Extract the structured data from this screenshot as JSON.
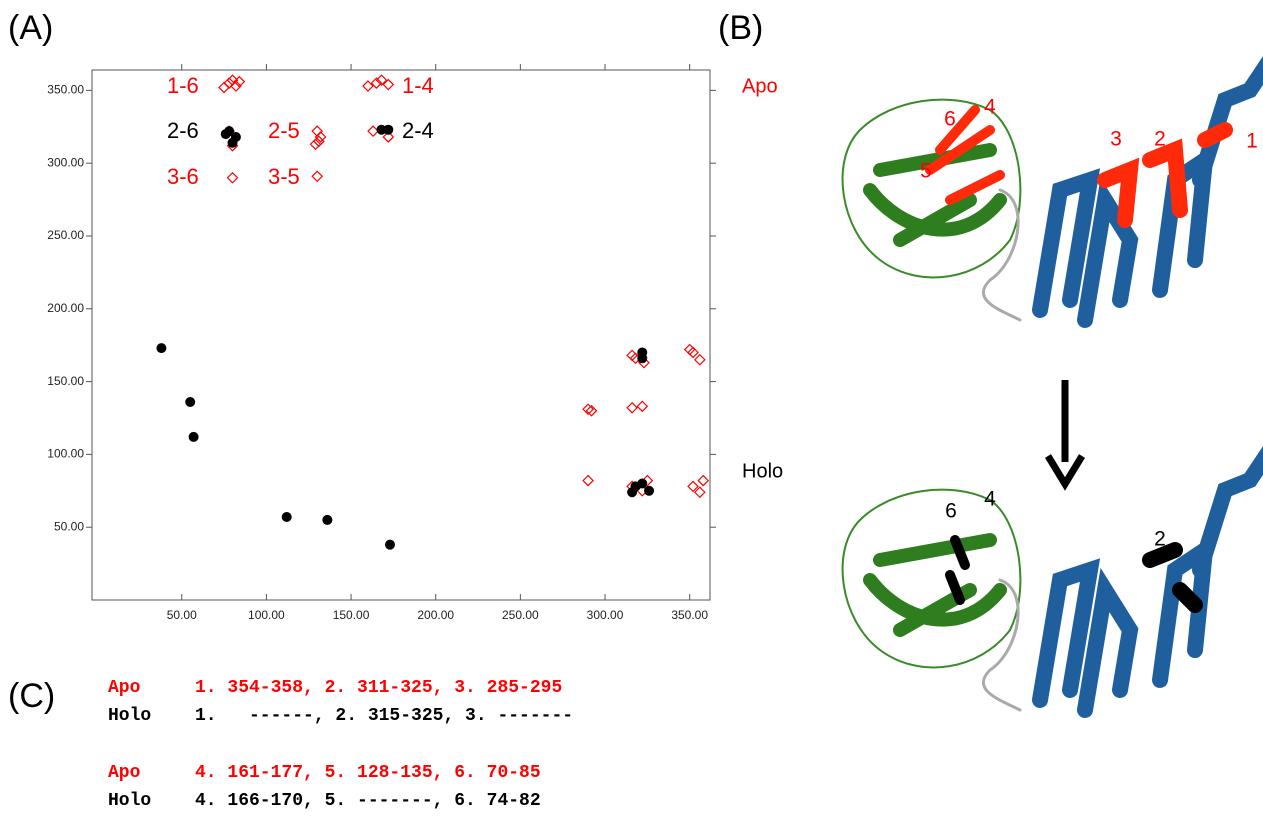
{
  "panels": {
    "a": "(A)",
    "b": "(B)",
    "c": "(C)"
  },
  "chart_data": {
    "type": "scatter",
    "xlim": [
      -3,
      362
    ],
    "ylim": [
      0,
      364
    ],
    "xticks": [
      {
        "value": 50,
        "label": "50.00"
      },
      {
        "value": 100,
        "label": "100.00"
      },
      {
        "value": 150,
        "label": "150.00"
      },
      {
        "value": 200,
        "label": "200.00"
      },
      {
        "value": 250,
        "label": "250.00"
      },
      {
        "value": 300,
        "label": "300.00"
      },
      {
        "value": 350,
        "label": "350.00"
      }
    ],
    "yticks": [
      {
        "value": 50,
        "label": "50.00"
      },
      {
        "value": 100,
        "label": "100.00"
      },
      {
        "value": 150,
        "label": "150.00"
      },
      {
        "value": 200,
        "label": "200.00"
      },
      {
        "value": 250,
        "label": "250.00"
      },
      {
        "value": 300,
        "label": "300.00"
      },
      {
        "value": 350,
        "label": "350.00"
      }
    ],
    "grid": false,
    "series": [
      {
        "name": "Apo",
        "color": "#ff0000",
        "marker": "diamond-open",
        "x": [
          75,
          78,
          80,
          82,
          84,
          78,
          80,
          80,
          130,
          131,
          132,
          129,
          130,
          160,
          165,
          168,
          172,
          163,
          172,
          290,
          292,
          290,
          316,
          322,
          316,
          322,
          325,
          318,
          323,
          316,
          352,
          356,
          350,
          356,
          352,
          358
        ],
        "y": [
          352,
          355,
          357,
          353,
          356,
          322,
          312,
          290,
          322,
          315,
          318,
          313,
          291,
          353,
          355,
          357,
          354,
          322,
          318,
          131,
          130,
          82,
          132,
          133,
          78,
          75,
          82,
          166,
          163,
          168,
          170,
          165,
          172,
          74,
          78,
          82
        ]
      },
      {
        "name": "Holo",
        "color": "#000000",
        "marker": "circle",
        "x": [
          38,
          55,
          57,
          112,
          136,
          173,
          78,
          82,
          80,
          76,
          168,
          172,
          322,
          322,
          318,
          322,
          326,
          316
        ],
        "y": [
          173,
          136,
          112,
          57,
          55,
          38,
          322,
          318,
          314,
          320,
          323,
          323,
          170,
          166,
          78,
          80,
          75,
          74
        ]
      }
    ],
    "annotations": [
      {
        "text": "1-6",
        "color": "#ff0000"
      },
      {
        "text": "2-6",
        "color": "#000000"
      },
      {
        "text": "3-6",
        "color": "#ff0000"
      },
      {
        "text": "2-5",
        "color": "#ff0000"
      },
      {
        "text": "3-5",
        "color": "#ff0000"
      },
      {
        "text": "1-4",
        "color": "#ff0000"
      },
      {
        "text": "2-4",
        "color": "#000000"
      }
    ]
  },
  "structure_labels": {
    "apo": [
      "6",
      "4",
      "5",
      "3",
      "2",
      "1"
    ],
    "holo": [
      "6",
      "4",
      "2"
    ]
  },
  "ranges": [
    {
      "state": "Apo",
      "text": "1. 354-358, 2. 311-325, 3. 285-295"
    },
    {
      "state": "Holo",
      "text": "1.   ------, 2. 315-325, 3. -------"
    },
    {
      "state": "Apo",
      "text": "4. 161-177, 5. 128-135, 6. 70-85"
    },
    {
      "state": "Holo",
      "text": "4. 166-170, 5. -------, 6. 74-82"
    }
  ]
}
